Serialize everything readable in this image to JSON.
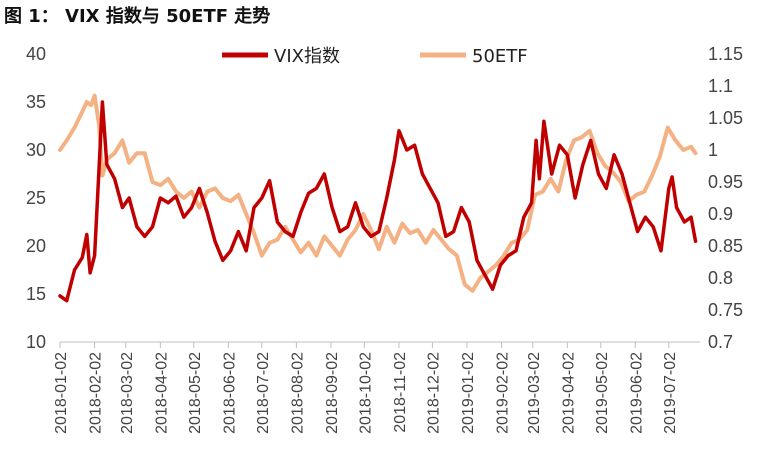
{
  "figure_title": "图 1： VIX 指数与 50ETF 走势",
  "chart_data": {
    "type": "line",
    "left_axis": {
      "min": 10,
      "max": 40,
      "ticks": [
        "10",
        "15",
        "20",
        "25",
        "30",
        "35",
        "40"
      ]
    },
    "right_axis": {
      "min": 0.7,
      "max": 1.15,
      "ticks": [
        "0.7",
        "0.75",
        "0.8",
        "0.85",
        "0.9",
        "0.95",
        "1",
        "1.05",
        "1.1",
        "1.15"
      ]
    },
    "x_ticks": [
      "2018-01-02",
      "2018-02-02",
      "2018-03-02",
      "2018-04-02",
      "2018-05-02",
      "2018-06-02",
      "2018-07-02",
      "2018-08-02",
      "2018-09-02",
      "2018-10-02",
      "2018-11-02",
      "2018-12-02",
      "2019-01-02",
      "2019-02-02",
      "2019-03-02",
      "2019-04-02",
      "2019-05-02",
      "2019-06-02",
      "2019-07-02"
    ],
    "legend_position": "top",
    "series": [
      {
        "name": "VIX指数",
        "axis": "left",
        "color": "#c00000",
        "points": [
          [
            "2018-01-02",
            14.8
          ],
          [
            "2018-01-08",
            14.3
          ],
          [
            "2018-01-15",
            17.5
          ],
          [
            "2018-01-22",
            18.8
          ],
          [
            "2018-01-26",
            21.2
          ],
          [
            "2018-01-29",
            17.2
          ],
          [
            "2018-02-02",
            19.0
          ],
          [
            "2018-02-06",
            28.0
          ],
          [
            "2018-02-09",
            35.0
          ],
          [
            "2018-02-13",
            28.5
          ],
          [
            "2018-02-20",
            27.0
          ],
          [
            "2018-02-27",
            24.0
          ],
          [
            "2018-03-05",
            25.0
          ],
          [
            "2018-03-12",
            22.0
          ],
          [
            "2018-03-19",
            21.0
          ],
          [
            "2018-03-26",
            22.0
          ],
          [
            "2018-04-02",
            25.0
          ],
          [
            "2018-04-09",
            24.5
          ],
          [
            "2018-04-16",
            25.2
          ],
          [
            "2018-04-23",
            23.0
          ],
          [
            "2018-04-30",
            24.0
          ],
          [
            "2018-05-07",
            26.0
          ],
          [
            "2018-05-14",
            23.5
          ],
          [
            "2018-05-21",
            20.5
          ],
          [
            "2018-05-28",
            18.5
          ],
          [
            "2018-06-04",
            19.5
          ],
          [
            "2018-06-11",
            21.5
          ],
          [
            "2018-06-18",
            19.5
          ],
          [
            "2018-06-25",
            24.0
          ],
          [
            "2018-07-02",
            25.0
          ],
          [
            "2018-07-09",
            26.8
          ],
          [
            "2018-07-16",
            22.5
          ],
          [
            "2018-07-23",
            21.5
          ],
          [
            "2018-07-30",
            21.0
          ],
          [
            "2018-08-06",
            23.5
          ],
          [
            "2018-08-13",
            25.5
          ],
          [
            "2018-08-20",
            26.0
          ],
          [
            "2018-08-27",
            27.5
          ],
          [
            "2018-09-03",
            24.0
          ],
          [
            "2018-09-10",
            21.5
          ],
          [
            "2018-09-17",
            22.0
          ],
          [
            "2018-09-24",
            24.5
          ],
          [
            "2018-10-01",
            22.0
          ],
          [
            "2018-10-08",
            21.0
          ],
          [
            "2018-10-15",
            21.5
          ],
          [
            "2018-10-22",
            25.0
          ],
          [
            "2018-10-29",
            29.0
          ],
          [
            "2018-11-02",
            32.0
          ],
          [
            "2018-11-09",
            30.0
          ],
          [
            "2018-11-16",
            30.5
          ],
          [
            "2018-11-23",
            27.5
          ],
          [
            "2018-11-30",
            26.0
          ],
          [
            "2018-12-07",
            24.5
          ],
          [
            "2018-12-14",
            21.0
          ],
          [
            "2018-12-21",
            21.5
          ],
          [
            "2018-12-28",
            24.0
          ],
          [
            "2019-01-04",
            22.5
          ],
          [
            "2019-01-11",
            18.5
          ],
          [
            "2019-01-18",
            17.0
          ],
          [
            "2019-01-25",
            15.5
          ],
          [
            "2019-02-01",
            18.0
          ],
          [
            "2019-02-08",
            19.0
          ],
          [
            "2019-02-15",
            19.5
          ],
          [
            "2019-02-22",
            23.0
          ],
          [
            "2019-03-01",
            24.5
          ],
          [
            "2019-03-05",
            31.0
          ],
          [
            "2019-03-08",
            27.0
          ],
          [
            "2019-03-12",
            33.0
          ],
          [
            "2019-03-19",
            27.5
          ],
          [
            "2019-03-26",
            30.5
          ],
          [
            "2019-04-02",
            29.5
          ],
          [
            "2019-04-09",
            25.0
          ],
          [
            "2019-04-16",
            28.5
          ],
          [
            "2019-04-23",
            31.0
          ],
          [
            "2019-04-30",
            27.5
          ],
          [
            "2019-05-07",
            26.0
          ],
          [
            "2019-05-14",
            29.5
          ],
          [
            "2019-05-21",
            27.5
          ],
          [
            "2019-05-28",
            24.5
          ],
          [
            "2019-06-04",
            21.5
          ],
          [
            "2019-06-11",
            23.0
          ],
          [
            "2019-06-18",
            22.0
          ],
          [
            "2019-06-25",
            19.5
          ],
          [
            "2019-07-02",
            26.0
          ],
          [
            "2019-07-05",
            27.2
          ],
          [
            "2019-07-09",
            24.0
          ],
          [
            "2019-07-16",
            22.5
          ],
          [
            "2019-07-22",
            23.0
          ],
          [
            "2019-07-26",
            20.5
          ]
        ]
      },
      {
        "name": "50ETF",
        "axis": "right",
        "color": "#f4b183",
        "points": [
          [
            "2018-01-02",
            1.0
          ],
          [
            "2018-01-08",
            1.015
          ],
          [
            "2018-01-15",
            1.035
          ],
          [
            "2018-01-22",
            1.06
          ],
          [
            "2018-01-26",
            1.075
          ],
          [
            "2018-01-30",
            1.07
          ],
          [
            "2018-02-02",
            1.085
          ],
          [
            "2018-02-06",
            1.04
          ],
          [
            "2018-02-09",
            0.96
          ],
          [
            "2018-02-13",
            0.985
          ],
          [
            "2018-02-20",
            0.995
          ],
          [
            "2018-02-27",
            1.015
          ],
          [
            "2018-03-05",
            0.98
          ],
          [
            "2018-03-12",
            0.995
          ],
          [
            "2018-03-19",
            0.995
          ],
          [
            "2018-03-26",
            0.95
          ],
          [
            "2018-04-02",
            0.945
          ],
          [
            "2018-04-09",
            0.955
          ],
          [
            "2018-04-16",
            0.935
          ],
          [
            "2018-04-23",
            0.925
          ],
          [
            "2018-04-30",
            0.935
          ],
          [
            "2018-05-07",
            0.91
          ],
          [
            "2018-05-14",
            0.935
          ],
          [
            "2018-05-21",
            0.94
          ],
          [
            "2018-05-28",
            0.925
          ],
          [
            "2018-06-04",
            0.92
          ],
          [
            "2018-06-11",
            0.93
          ],
          [
            "2018-06-18",
            0.9
          ],
          [
            "2018-06-25",
            0.87
          ],
          [
            "2018-07-02",
            0.835
          ],
          [
            "2018-07-09",
            0.855
          ],
          [
            "2018-07-16",
            0.86
          ],
          [
            "2018-07-23",
            0.88
          ],
          [
            "2018-07-30",
            0.86
          ],
          [
            "2018-08-06",
            0.84
          ],
          [
            "2018-08-13",
            0.855
          ],
          [
            "2018-08-20",
            0.835
          ],
          [
            "2018-08-27",
            0.865
          ],
          [
            "2018-09-03",
            0.85
          ],
          [
            "2018-09-10",
            0.835
          ],
          [
            "2018-09-17",
            0.86
          ],
          [
            "2018-09-24",
            0.875
          ],
          [
            "2018-10-01",
            0.9
          ],
          [
            "2018-10-08",
            0.875
          ],
          [
            "2018-10-15",
            0.845
          ],
          [
            "2018-10-22",
            0.88
          ],
          [
            "2018-10-29",
            0.855
          ],
          [
            "2018-11-05",
            0.885
          ],
          [
            "2018-11-12",
            0.87
          ],
          [
            "2018-11-19",
            0.875
          ],
          [
            "2018-11-26",
            0.855
          ],
          [
            "2018-12-03",
            0.875
          ],
          [
            "2018-12-10",
            0.86
          ],
          [
            "2018-12-17",
            0.845
          ],
          [
            "2018-12-24",
            0.835
          ],
          [
            "2018-12-31",
            0.79
          ],
          [
            "2019-01-07",
            0.78
          ],
          [
            "2019-01-14",
            0.8
          ],
          [
            "2019-01-21",
            0.81
          ],
          [
            "2019-01-28",
            0.82
          ],
          [
            "2019-02-04",
            0.835
          ],
          [
            "2019-02-11",
            0.855
          ],
          [
            "2019-02-18",
            0.86
          ],
          [
            "2019-02-25",
            0.875
          ],
          [
            "2019-03-04",
            0.93
          ],
          [
            "2019-03-11",
            0.935
          ],
          [
            "2019-03-18",
            0.955
          ],
          [
            "2019-03-25",
            0.935
          ],
          [
            "2019-04-01",
            0.985
          ],
          [
            "2019-04-08",
            1.015
          ],
          [
            "2019-04-15",
            1.02
          ],
          [
            "2019-04-22",
            1.03
          ],
          [
            "2019-04-29",
            0.995
          ],
          [
            "2019-05-06",
            0.975
          ],
          [
            "2019-05-13",
            0.965
          ],
          [
            "2019-05-20",
            0.95
          ],
          [
            "2019-05-27",
            0.92
          ],
          [
            "2019-06-03",
            0.93
          ],
          [
            "2019-06-10",
            0.935
          ],
          [
            "2019-06-17",
            0.96
          ],
          [
            "2019-06-24",
            0.99
          ],
          [
            "2019-07-01",
            1.035
          ],
          [
            "2019-07-08",
            1.015
          ],
          [
            "2019-07-15",
            1.0
          ],
          [
            "2019-07-22",
            1.005
          ],
          [
            "2019-07-26",
            0.995
          ]
        ]
      }
    ]
  }
}
